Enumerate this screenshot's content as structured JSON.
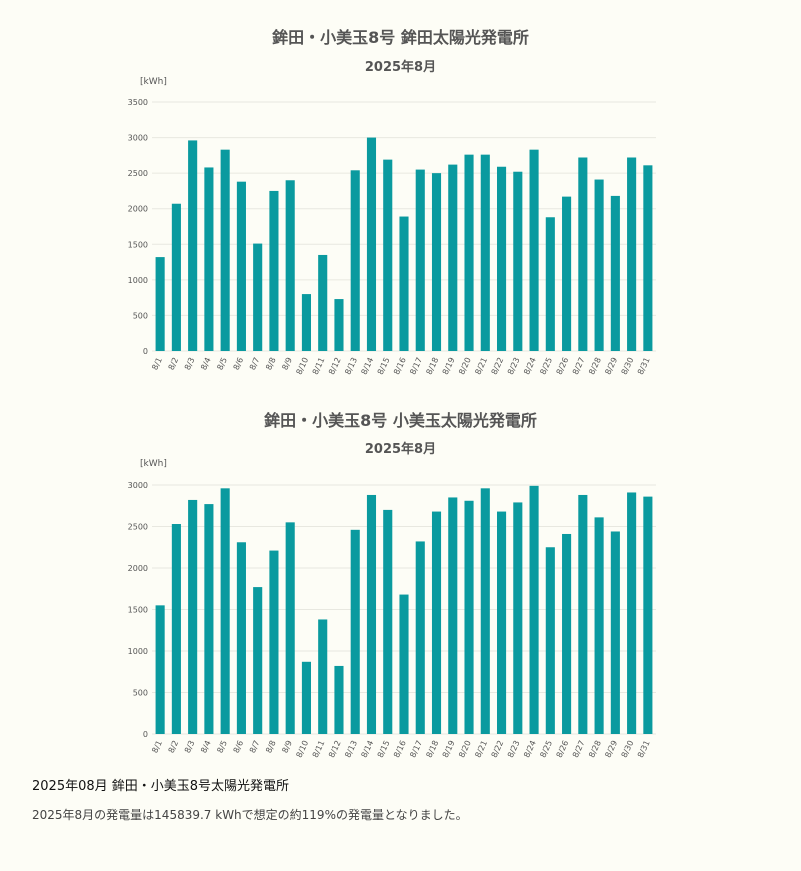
{
  "colors": {
    "bar": "#0a9a9f",
    "grid": "#e8e8e0",
    "axis_text": "#555555"
  },
  "charts": [
    {
      "title": "鉾田・小美玉8号 鉾田太陽光発電所",
      "subtitle": "2025年8月",
      "unit": "[kWh]"
    },
    {
      "title": "鉾田・小美玉8号 小美玉太陽光発電所",
      "subtitle": "2025年8月",
      "unit": "[kWh]"
    }
  ],
  "chart_data": [
    {
      "type": "bar",
      "title": "鉾田・小美玉8号 鉾田太陽光発電所",
      "subtitle": "2025年8月",
      "ylabel": "[kWh]",
      "ylim": [
        0,
        3500
      ],
      "yticks": [
        0,
        500,
        1000,
        1500,
        2000,
        2500,
        3000,
        3500
      ],
      "grid": true,
      "categories": [
        "8/1",
        "8/2",
        "8/3",
        "8/4",
        "8/5",
        "8/6",
        "8/7",
        "8/8",
        "8/9",
        "8/10",
        "8/11",
        "8/12",
        "8/13",
        "8/14",
        "8/15",
        "8/16",
        "8/17",
        "8/18",
        "8/19",
        "8/20",
        "8/21",
        "8/22",
        "8/23",
        "8/24",
        "8/25",
        "8/26",
        "8/27",
        "8/28",
        "8/29",
        "8/30",
        "8/31"
      ],
      "values": [
        1320,
        2070,
        2960,
        2580,
        2830,
        2380,
        1510,
        2250,
        2400,
        800,
        1350,
        730,
        2540,
        3000,
        2690,
        1890,
        2550,
        2500,
        2620,
        2760,
        2760,
        2590,
        2520,
        2830,
        1880,
        2170,
        2720,
        2410,
        2180,
        2720,
        2610
      ]
    },
    {
      "type": "bar",
      "title": "鉾田・小美玉8号 小美玉太陽光発電所",
      "subtitle": "2025年8月",
      "ylabel": "[kWh]",
      "ylim": [
        0,
        3000
      ],
      "yticks": [
        0,
        500,
        1000,
        1500,
        2000,
        2500,
        3000
      ],
      "grid": true,
      "categories": [
        "8/1",
        "8/2",
        "8/3",
        "8/4",
        "8/5",
        "8/6",
        "8/7",
        "8/8",
        "8/9",
        "8/10",
        "8/11",
        "8/12",
        "8/13",
        "8/14",
        "8/15",
        "8/16",
        "8/17",
        "8/18",
        "8/19",
        "8/20",
        "8/21",
        "8/22",
        "8/23",
        "8/24",
        "8/25",
        "8/26",
        "8/27",
        "8/28",
        "8/29",
        "8/30",
        "8/31"
      ],
      "values": [
        1550,
        2530,
        2820,
        2770,
        2960,
        2310,
        1770,
        2210,
        2550,
        870,
        1380,
        820,
        2460,
        2880,
        2700,
        1680,
        2320,
        2680,
        2850,
        2810,
        2960,
        2680,
        2790,
        2990,
        2250,
        2410,
        2880,
        2610,
        2440,
        2910,
        2860
      ]
    }
  ],
  "summary": {
    "heading": "2025年08月  鉾田・小美玉8号太陽光発電所",
    "text": "2025年8月の発電量は145839.7 kWhで想定の約119%の発電量となりました。"
  }
}
